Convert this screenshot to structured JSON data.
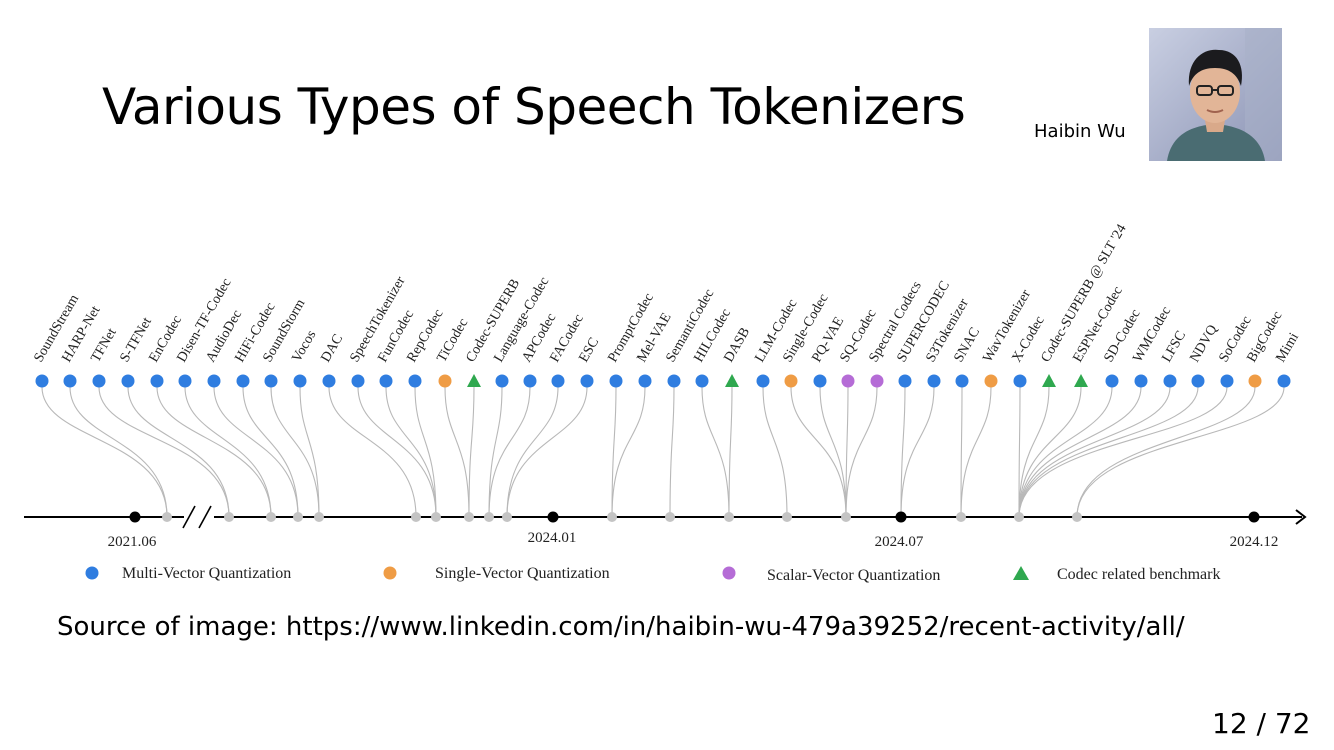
{
  "slide": {
    "title": "Various Types of Speech Tokenizers",
    "author": "Haibin Wu",
    "source": "Source of image: https://www.linkedin.com/in/haibin-wu-479a39252/recent-activity/all/",
    "page": "12 / 72"
  },
  "timeline": {
    "dates": [
      "2021.06",
      "2024.01",
      "2024.07",
      "2024.12"
    ],
    "legend": {
      "mvq": "Multi-Vector Quantization",
      "svq": "Single-Vector Quantization",
      "scalar": "Scalar-Vector Quantization",
      "bench": "Codec related benchmark"
    },
    "colors": {
      "mvq": "#2f7de0",
      "svq": "#ef9c45",
      "scalar": "#b56cd6",
      "bench": "#2fa84f"
    },
    "items": [
      {
        "name": "SoundStream",
        "type": "mvq"
      },
      {
        "name": "HARP-Net",
        "type": "mvq"
      },
      {
        "name": "TFNet",
        "type": "mvq"
      },
      {
        "name": "S-TFNet",
        "type": "mvq"
      },
      {
        "name": "EnCodec",
        "type": "mvq"
      },
      {
        "name": "Disen-TF-Codec",
        "type": "mvq"
      },
      {
        "name": "AudioDec",
        "type": "mvq"
      },
      {
        "name": "HiFi-Codec",
        "type": "mvq"
      },
      {
        "name": "SoundStorm",
        "type": "mvq"
      },
      {
        "name": "Vocos",
        "type": "mvq"
      },
      {
        "name": "DAC",
        "type": "mvq"
      },
      {
        "name": "SpeechTokenizer",
        "type": "mvq"
      },
      {
        "name": "FunCodec",
        "type": "mvq"
      },
      {
        "name": "RepCodec",
        "type": "mvq"
      },
      {
        "name": "TiCodec",
        "type": "svq"
      },
      {
        "name": "Codec-SUPERB",
        "type": "bench"
      },
      {
        "name": "Language-Codec",
        "type": "mvq"
      },
      {
        "name": "APCodec",
        "type": "mvq"
      },
      {
        "name": "FACodec",
        "type": "mvq"
      },
      {
        "name": "ESC",
        "type": "mvq"
      },
      {
        "name": "PromptCodec",
        "type": "mvq"
      },
      {
        "name": "Mel-VAE",
        "type": "mvq"
      },
      {
        "name": "SemantiCodec",
        "type": "mvq"
      },
      {
        "name": "HILCodec",
        "type": "mvq"
      },
      {
        "name": "DASB",
        "type": "bench"
      },
      {
        "name": "LLM-Codec",
        "type": "mvq"
      },
      {
        "name": "Single-Codec",
        "type": "svq"
      },
      {
        "name": "PQ-VAE",
        "type": "mvq"
      },
      {
        "name": "SQ-Codec",
        "type": "scalar"
      },
      {
        "name": "Spectral Codecs",
        "type": "scalar"
      },
      {
        "name": "SUPERCODEC",
        "type": "mvq"
      },
      {
        "name": "S3Tokenizer",
        "type": "mvq"
      },
      {
        "name": "SNAC",
        "type": "mvq"
      },
      {
        "name": "WavTokenizer",
        "type": "svq"
      },
      {
        "name": "X-Codec",
        "type": "mvq"
      },
      {
        "name": "Codec-SUPERB @ SLT '24",
        "type": "bench"
      },
      {
        "name": "ESPNet-Codec",
        "type": "bench"
      },
      {
        "name": "SD-Codec",
        "type": "mvq"
      },
      {
        "name": "WMCodec",
        "type": "mvq"
      },
      {
        "name": "LFSC",
        "type": "mvq"
      },
      {
        "name": "NDVQ",
        "type": "mvq"
      },
      {
        "name": "SoCodec",
        "type": "mvq"
      },
      {
        "name": "BigCodec",
        "type": "svq"
      },
      {
        "name": "Mimi",
        "type": "mvq"
      }
    ]
  }
}
